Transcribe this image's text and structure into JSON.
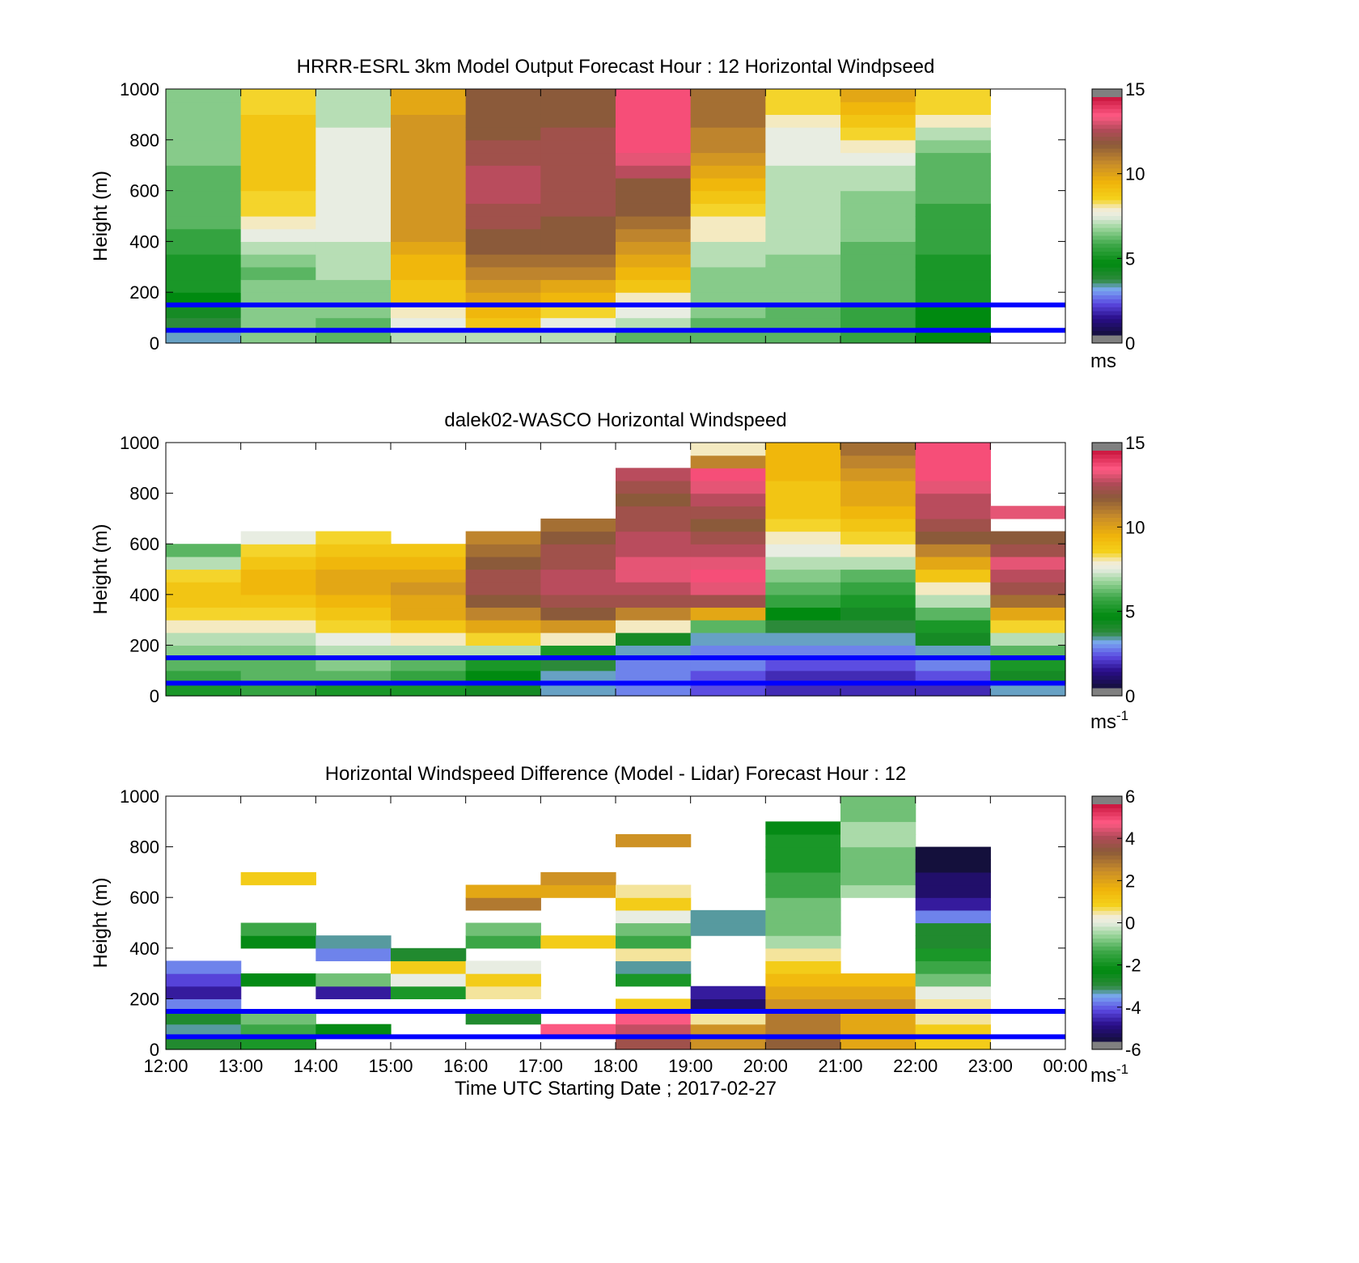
{
  "colors": {
    "frame": "#000000",
    "reference_line": "#0000ff",
    "background": "#ffffff"
  },
  "shared_x_axis": {
    "ticks": [
      "12:00",
      "13:00",
      "14:00",
      "15:00",
      "16:00",
      "17:00",
      "18:00",
      "19:00",
      "20:00",
      "21:00",
      "22:00",
      "23:00",
      "00:00"
    ],
    "label": "Time UTC  Starting Date ; 2017-02-27"
  },
  "chart_data": [
    {
      "type": "heatmap",
      "title": "HRRR-ESRL 3km Model Output   Forecast Hour : 12 Horizontal Windpseed",
      "ylabel": "Height (m)",
      "ylim": [
        0,
        1000
      ],
      "yticks": [
        "0",
        "200",
        "400",
        "600",
        "800",
        "1000"
      ],
      "colorbar": {
        "range": [
          0,
          15
        ],
        "ticks": [
          "0",
          "5",
          "10",
          "15"
        ],
        "unit": "ms",
        "unit_sup": ""
      },
      "reference_lines_m": [
        150,
        50
      ],
      "hours": [
        12,
        13,
        14,
        15,
        16,
        17,
        18,
        19,
        20,
        21,
        22
      ],
      "levels_m": [
        0,
        50,
        100,
        150,
        200,
        250,
        300,
        350,
        400,
        450,
        500,
        550,
        600,
        650,
        700,
        750,
        800,
        850,
        900,
        950
      ],
      "values": [
        [
          3.0,
          3.5,
          4.0,
          4.5,
          5.0,
          5.0,
          5.0,
          5.5,
          5.5,
          6.0,
          6.0,
          6.0,
          6.0,
          6.0,
          6.5,
          6.5,
          6.5,
          6.5,
          6.5,
          6.5
        ],
        [
          6.5,
          6.5,
          6.5,
          6.5,
          6.5,
          6.0,
          6.5,
          7.0,
          7.5,
          8.0,
          8.5,
          8.5,
          9.0,
          9.0,
          9.0,
          9.0,
          9.0,
          9.0,
          8.5,
          8.5
        ],
        [
          6.0,
          6.0,
          6.5,
          6.5,
          6.5,
          7.0,
          7.0,
          7.0,
          7.5,
          7.5,
          7.5,
          7.5,
          7.5,
          7.5,
          7.5,
          7.5,
          7.5,
          7.0,
          7.0,
          7.0
        ],
        [
          7.0,
          7.5,
          8.0,
          9.0,
          9.0,
          9.5,
          9.5,
          10.0,
          10.5,
          10.5,
          10.5,
          10.5,
          10.5,
          10.5,
          10.5,
          10.5,
          10.5,
          10.5,
          10.0,
          10.0
        ],
        [
          7.0,
          9.0,
          9.5,
          10.0,
          10.5,
          11.0,
          11.5,
          12.0,
          12.0,
          12.5,
          12.5,
          13.0,
          13.0,
          13.0,
          12.5,
          12.5,
          12.0,
          12.0,
          12.0,
          12.0
        ],
        [
          7.0,
          7.5,
          8.5,
          9.5,
          10.0,
          11.0,
          11.5,
          12.0,
          12.0,
          12.0,
          12.5,
          12.5,
          12.5,
          12.5,
          12.5,
          12.5,
          12.5,
          12.0,
          12.0,
          12.0
        ],
        [
          6.0,
          7.0,
          7.5,
          8.0,
          9.0,
          9.5,
          10.0,
          10.5,
          11.0,
          11.5,
          12.0,
          12.0,
          12.0,
          13.0,
          13.5,
          14.0,
          14.0,
          14.0,
          14.0,
          14.0
        ],
        [
          6.0,
          6.0,
          6.5,
          6.5,
          6.5,
          6.5,
          7.0,
          7.0,
          8.0,
          8.0,
          8.5,
          9.0,
          9.5,
          10.0,
          10.5,
          11.0,
          11.0,
          11.5,
          11.5,
          11.5
        ],
        [
          6.0,
          6.0,
          6.0,
          6.5,
          6.5,
          6.5,
          6.5,
          7.0,
          7.0,
          7.0,
          7.0,
          7.0,
          7.0,
          7.0,
          7.5,
          7.5,
          7.5,
          8.0,
          8.5,
          8.5
        ],
        [
          5.5,
          5.5,
          5.5,
          6.0,
          6.0,
          6.0,
          6.0,
          6.0,
          6.5,
          6.5,
          6.5,
          6.5,
          7.0,
          7.0,
          7.5,
          8.0,
          8.5,
          9.0,
          9.5,
          10.0
        ],
        [
          4.5,
          4.5,
          4.5,
          5.0,
          5.0,
          5.0,
          5.0,
          5.5,
          5.5,
          5.5,
          5.5,
          6.0,
          6.0,
          6.0,
          6.0,
          6.5,
          7.0,
          8.0,
          8.5,
          8.5
        ]
      ]
    },
    {
      "type": "heatmap",
      "title": "dalek02-WASCO  Horizontal Windspeed",
      "ylabel": "Height (m)",
      "ylim": [
        0,
        1000
      ],
      "yticks": [
        "0",
        "200",
        "400",
        "600",
        "800",
        "1000"
      ],
      "colorbar": {
        "range": [
          0,
          15
        ],
        "ticks": [
          "0",
          "5",
          "10",
          "15"
        ],
        "unit": "ms",
        "unit_sup": "-1"
      },
      "reference_lines_m": [
        150,
        50
      ],
      "hours": [
        12,
        13,
        14,
        15,
        16,
        17,
        18,
        19,
        20,
        21,
        22,
        23
      ],
      "levels_m": [
        0,
        50,
        100,
        150,
        200,
        250,
        300,
        350,
        400,
        450,
        500,
        550,
        600,
        650,
        700,
        750,
        800,
        850,
        900,
        950
      ],
      "values": [
        [
          5.0,
          5.5,
          6.0,
          6.5,
          7.0,
          8.0,
          8.5,
          9.0,
          9.0,
          8.5,
          7.0,
          6.0,
          null,
          null,
          null,
          null,
          null,
          null,
          null,
          null
        ],
        [
          5.5,
          6.0,
          6.0,
          6.5,
          7.0,
          8.0,
          8.5,
          9.0,
          9.5,
          9.5,
          9.0,
          8.5,
          7.5,
          null,
          null,
          null,
          null,
          null,
          null,
          null
        ],
        [
          5.0,
          6.0,
          6.5,
          7.0,
          7.5,
          8.5,
          9.0,
          9.5,
          10.0,
          10.0,
          9.5,
          9.0,
          8.5,
          null,
          null,
          null,
          null,
          null,
          null,
          null
        ],
        [
          5.0,
          5.5,
          6.0,
          7.0,
          8.0,
          9.0,
          10.0,
          10.0,
          10.5,
          10.0,
          9.5,
          9.0,
          null,
          null,
          null,
          null,
          null,
          null,
          null,
          null
        ],
        [
          4.0,
          4.5,
          5.0,
          7.0,
          8.5,
          10.0,
          11.0,
          12.0,
          12.5,
          12.5,
          12.0,
          11.5,
          11.0,
          null,
          null,
          null,
          null,
          null,
          null,
          null
        ],
        [
          3.0,
          3.0,
          3.5,
          5.0,
          8.0,
          10.5,
          12.0,
          12.5,
          13.0,
          13.0,
          12.5,
          12.5,
          12.0,
          11.5,
          null,
          null,
          null,
          null,
          null,
          null
        ],
        [
          2.5,
          2.5,
          2.5,
          3.0,
          4.0,
          8.0,
          11.0,
          12.5,
          13.0,
          13.5,
          13.5,
          13.0,
          13.0,
          12.5,
          12.5,
          12.0,
          12.5,
          13.0,
          null,
          null
        ],
        [
          2.0,
          2.0,
          2.5,
          2.5,
          3.0,
          6.0,
          10.0,
          12.5,
          13.5,
          14.0,
          13.5,
          13.0,
          12.5,
          12.0,
          12.5,
          13.0,
          13.5,
          14.0,
          11.0,
          8.0
        ],
        [
          1.5,
          1.5,
          2.0,
          2.5,
          3.0,
          3.5,
          4.5,
          5.5,
          6.0,
          6.5,
          7.0,
          7.5,
          8.0,
          8.5,
          9.0,
          9.0,
          9.0,
          9.5,
          9.5,
          9.5
        ],
        [
          1.5,
          1.5,
          2.0,
          2.5,
          3.0,
          3.5,
          4.0,
          5.0,
          5.5,
          6.0,
          7.0,
          8.0,
          8.5,
          9.0,
          9.5,
          10.0,
          10.0,
          10.5,
          11.0,
          11.5
        ],
        [
          1.5,
          2.0,
          2.5,
          3.0,
          4.0,
          5.0,
          6.0,
          7.0,
          8.0,
          9.0,
          10.0,
          11.0,
          12.0,
          12.5,
          13.0,
          13.0,
          13.5,
          14.0,
          14.0,
          14.0
        ],
        [
          3.0,
          4.0,
          5.0,
          6.0,
          7.0,
          8.5,
          10.0,
          11.5,
          12.5,
          13.0,
          13.5,
          12.5,
          12.0,
          null,
          13.5,
          null,
          null,
          null,
          null,
          null
        ]
      ]
    },
    {
      "type": "heatmap",
      "title": "Horizontal Windspeed Difference (Model - Lidar) Forecast Hour : 12",
      "ylabel": "Height (m)",
      "xlabel": "Time UTC  Starting Date ; 2017-02-27",
      "ylim": [
        0,
        1000
      ],
      "yticks": [
        "0",
        "200",
        "400",
        "600",
        "800",
        "1000"
      ],
      "colorbar": {
        "range": [
          -6,
          6
        ],
        "ticks": [
          "-6",
          "-4",
          "-2",
          "0",
          "2",
          "4",
          "6"
        ],
        "unit": "ms",
        "unit_sup": "-1"
      },
      "reference_lines_m": [
        150,
        50
      ],
      "hours": [
        12,
        13,
        14,
        15,
        16,
        17,
        18,
        19,
        20,
        21,
        22
      ],
      "levels_m": [
        0,
        50,
        100,
        150,
        200,
        250,
        300,
        350,
        400,
        450,
        500,
        550,
        600,
        650,
        700,
        750,
        800,
        850,
        900,
        950
      ],
      "values": [
        [
          -3.0,
          -3.5,
          -3.0,
          -4.0,
          -5.0,
          -4.5,
          -4.0,
          null,
          null,
          null,
          null,
          null,
          null,
          null,
          null,
          null,
          null,
          null,
          null,
          null
        ],
        [
          -2.0,
          -1.5,
          -1.0,
          null,
          null,
          -2.5,
          null,
          null,
          -2.5,
          -1.5,
          null,
          null,
          null,
          1.0,
          null,
          null,
          null,
          null,
          null,
          null
        ],
        [
          null,
          -2.5,
          null,
          null,
          -5.0,
          -1.0,
          null,
          -4.0,
          -3.5,
          null,
          null,
          null,
          null,
          null,
          null,
          null,
          null,
          null,
          null,
          null
        ],
        [
          null,
          null,
          null,
          null,
          -2.0,
          0.0,
          1.0,
          -3.0,
          null,
          null,
          null,
          null,
          null,
          null,
          null,
          null,
          null,
          null,
          null,
          null
        ],
        [
          null,
          null,
          -3.0,
          null,
          0.5,
          1.0,
          0.0,
          null,
          -1.5,
          -1.0,
          null,
          3.0,
          2.0,
          null,
          null,
          null,
          null,
          null,
          null,
          null
        ],
        [
          null,
          5.0,
          null,
          null,
          null,
          null,
          null,
          null,
          1.0,
          null,
          null,
          null,
          2.0,
          2.5,
          null,
          null,
          null,
          null,
          null,
          null
        ],
        [
          4.0,
          4.5,
          5.0,
          1.0,
          null,
          -2.0,
          -3.5,
          0.5,
          -1.5,
          -1.0,
          0.0,
          1.0,
          0.5,
          null,
          null,
          null,
          2.5,
          null,
          null,
          null
        ],
        [
          2.5,
          2.5,
          0.5,
          -5.5,
          -5.0,
          null,
          null,
          null,
          null,
          -3.5,
          -3.5,
          null,
          null,
          null,
          null,
          null,
          null,
          null,
          null,
          null
        ],
        [
          3.5,
          3.0,
          3.0,
          2.5,
          2.0,
          1.5,
          1.0,
          0.5,
          -0.5,
          -1.0,
          -1.0,
          -1.0,
          -1.5,
          -1.5,
          -2.0,
          -2.0,
          -2.0,
          -2.5,
          null,
          null
        ],
        [
          2.0,
          2.0,
          2.0,
          2.5,
          2.0,
          1.5,
          null,
          null,
          null,
          null,
          null,
          null,
          -0.5,
          -1.0,
          -1.0,
          -1.0,
          -0.5,
          -0.5,
          -1.0,
          -1.0
        ],
        [
          1.0,
          1.0,
          0.5,
          0.5,
          0.0,
          -1.0,
          -1.5,
          -2.0,
          -3.0,
          -3.0,
          -4.0,
          -5.0,
          -5.5,
          -5.5,
          -6.0,
          -6.0,
          null,
          null,
          null,
          null
        ]
      ]
    }
  ]
}
